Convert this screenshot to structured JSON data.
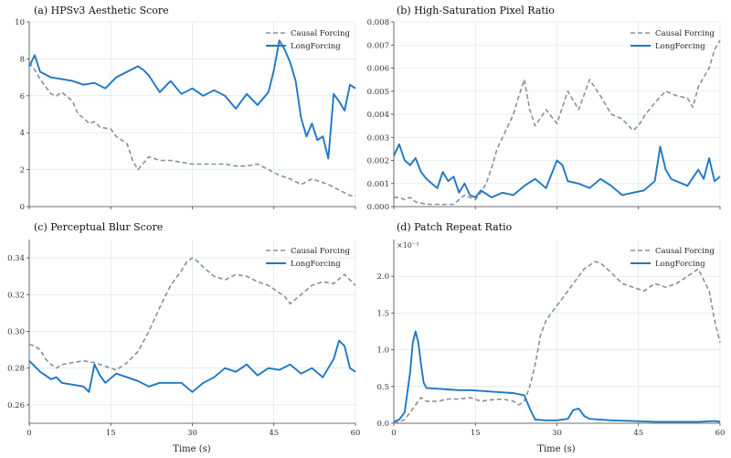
{
  "xlabel": "Time (s)",
  "colors": {
    "causal": "#8a9096",
    "long": "#1f77c4",
    "grid": "#cfe3e6"
  },
  "legend": {
    "causal": "Causal Forcing",
    "long": "LongForcing"
  },
  "chart_data": [
    {
      "id": "a",
      "type": "line",
      "title": "(a) HPSv3 Aesthetic Score",
      "xlim": [
        0,
        60
      ],
      "ylim": [
        0,
        10
      ],
      "xticks": [
        0,
        15,
        30,
        45,
        60
      ],
      "yticks": [
        0,
        2,
        4,
        6,
        8,
        10
      ],
      "ytick_labels": [
        "0",
        "2",
        "4",
        "6",
        "8",
        "10"
      ],
      "xtick_labels": [],
      "series": [
        {
          "name": "Causal Forcing",
          "style": "dashed",
          "x": [
            0,
            1,
            2,
            3,
            4,
            5,
            6,
            8,
            9,
            10,
            11,
            12,
            13,
            15,
            16,
            18,
            19,
            20,
            22,
            24,
            26,
            28,
            30,
            33,
            36,
            38,
            40,
            42,
            44,
            46,
            48,
            50,
            52,
            54,
            55,
            57,
            59,
            60
          ],
          "y": [
            7.8,
            7.4,
            6.9,
            6.5,
            6.1,
            6.0,
            6.2,
            5.7,
            5.0,
            4.8,
            4.5,
            4.6,
            4.3,
            4.2,
            3.8,
            3.4,
            2.5,
            2.0,
            2.7,
            2.5,
            2.5,
            2.4,
            2.3,
            2.3,
            2.3,
            2.2,
            2.2,
            2.3,
            2.0,
            1.7,
            1.5,
            1.2,
            1.5,
            1.3,
            1.2,
            0.9,
            0.6,
            0.6
          ]
        },
        {
          "name": "LongForcing",
          "style": "solid",
          "x": [
            0,
            1,
            2,
            4,
            6,
            8,
            10,
            12,
            14,
            16,
            18,
            20,
            21,
            22,
            24,
            26,
            28,
            30,
            32,
            34,
            36,
            38,
            40,
            42,
            44,
            45,
            46,
            47,
            48,
            49,
            50,
            51,
            52,
            53,
            54,
            55,
            56,
            57,
            58,
            59,
            60
          ],
          "y": [
            7.6,
            8.2,
            7.3,
            7.0,
            6.9,
            6.8,
            6.6,
            6.7,
            6.4,
            7.0,
            7.3,
            7.6,
            7.4,
            7.1,
            6.2,
            6.8,
            6.1,
            6.4,
            6.0,
            6.3,
            6.0,
            5.3,
            6.1,
            5.5,
            6.2,
            7.4,
            9.0,
            8.5,
            7.8,
            6.8,
            4.8,
            3.8,
            4.5,
            3.6,
            3.8,
            2.6,
            6.1,
            5.7,
            5.2,
            6.6,
            6.4
          ]
        }
      ]
    },
    {
      "id": "b",
      "type": "line",
      "title": "(b) High-Saturation Pixel Ratio",
      "xlim": [
        0,
        60
      ],
      "ylim": [
        0,
        0.008
      ],
      "xticks": [
        0,
        15,
        30,
        45,
        60
      ],
      "yticks": [
        0,
        0.001,
        0.002,
        0.003,
        0.004,
        0.005,
        0.006,
        0.007,
        0.008
      ],
      "ytick_labels": [
        "0.000",
        "0.001",
        "0.002",
        "0.003",
        "0.004",
        "0.005",
        "0.006",
        "0.007",
        "0.008"
      ],
      "xtick_labels": [],
      "series": [
        {
          "name": "Causal Forcing",
          "style": "dashed",
          "x": [
            0,
            1,
            2,
            3,
            4,
            6,
            8,
            10,
            11,
            12,
            13,
            14,
            15,
            16,
            17,
            18,
            19,
            20,
            21,
            22,
            23,
            24,
            25,
            26,
            28,
            30,
            32,
            34,
            36,
            38,
            40,
            42,
            44,
            45,
            46,
            48,
            50,
            52,
            54,
            55,
            56,
            58,
            59,
            60
          ],
          "y": [
            0.0004,
            0.0004,
            0.0003,
            0.0004,
            0.0002,
            0.0001,
            0.0001,
            0.0001,
            0.0001,
            0.0003,
            0.0005,
            0.0004,
            0.0003,
            0.0006,
            0.001,
            0.0017,
            0.0025,
            0.003,
            0.0035,
            0.004,
            0.0048,
            0.0055,
            0.0042,
            0.0035,
            0.0042,
            0.0036,
            0.005,
            0.0042,
            0.0055,
            0.0048,
            0.004,
            0.0038,
            0.0033,
            0.0035,
            0.0039,
            0.0045,
            0.005,
            0.0048,
            0.0047,
            0.0043,
            0.0052,
            0.006,
            0.0068,
            0.0072
          ]
        },
        {
          "name": "LongForcing",
          "style": "solid",
          "x": [
            0,
            1,
            2,
            3,
            4,
            5,
            6,
            7,
            8,
            9,
            10,
            11,
            12,
            13,
            14,
            15,
            16,
            18,
            20,
            22,
            24,
            26,
            28,
            30,
            31,
            32,
            34,
            36,
            38,
            40,
            42,
            44,
            46,
            48,
            49,
            50,
            51,
            52,
            54,
            56,
            57,
            58,
            59,
            60
          ],
          "y": [
            0.0022,
            0.0027,
            0.002,
            0.0018,
            0.0021,
            0.0015,
            0.0012,
            0.001,
            0.0008,
            0.0015,
            0.0011,
            0.0013,
            0.0006,
            0.001,
            0.0005,
            0.0004,
            0.0007,
            0.0004,
            0.0006,
            0.0005,
            0.0009,
            0.0012,
            0.0008,
            0.002,
            0.0018,
            0.0011,
            0.001,
            0.0008,
            0.0012,
            0.0009,
            0.0005,
            0.0006,
            0.0007,
            0.0011,
            0.0026,
            0.0016,
            0.0012,
            0.0011,
            0.0009,
            0.0016,
            0.0012,
            0.0021,
            0.0011,
            0.0013
          ]
        }
      ]
    },
    {
      "id": "c",
      "type": "line",
      "title": "(c) Perceptual Blur Score",
      "xlim": [
        0,
        60
      ],
      "ylim": [
        0.25,
        0.35
      ],
      "xticks": [
        0,
        15,
        30,
        45,
        60
      ],
      "yticks": [
        0.26,
        0.28,
        0.3,
        0.32,
        0.34
      ],
      "ytick_labels": [
        "0.26",
        "0.28",
        "0.30",
        "0.32",
        "0.34"
      ],
      "xtick_labels": [
        "0",
        "15",
        "30",
        "45",
        "60"
      ],
      "series": [
        {
          "name": "Causal Forcing",
          "style": "dashed",
          "x": [
            0,
            1,
            2,
            3,
            4,
            5,
            6,
            8,
            10,
            12,
            14,
            16,
            18,
            20,
            22,
            24,
            26,
            28,
            29,
            30,
            31,
            32,
            34,
            36,
            38,
            40,
            42,
            44,
            46,
            47,
            48,
            50,
            52,
            54,
            56,
            58,
            60
          ],
          "y": [
            0.293,
            0.292,
            0.29,
            0.285,
            0.282,
            0.28,
            0.282,
            0.283,
            0.284,
            0.283,
            0.281,
            0.279,
            0.283,
            0.289,
            0.3,
            0.313,
            0.325,
            0.333,
            0.338,
            0.34,
            0.338,
            0.335,
            0.33,
            0.328,
            0.331,
            0.33,
            0.327,
            0.325,
            0.321,
            0.319,
            0.315,
            0.32,
            0.325,
            0.327,
            0.326,
            0.331,
            0.325
          ]
        },
        {
          "name": "LongForcing",
          "style": "solid",
          "x": [
            0,
            1,
            2,
            3,
            4,
            5,
            6,
            8,
            10,
            11,
            12,
            13,
            14,
            16,
            18,
            20,
            22,
            24,
            26,
            28,
            30,
            32,
            34,
            36,
            38,
            40,
            42,
            44,
            46,
            48,
            50,
            52,
            54,
            56,
            57,
            58,
            59,
            60
          ],
          "y": [
            0.284,
            0.281,
            0.278,
            0.276,
            0.274,
            0.275,
            0.272,
            0.271,
            0.27,
            0.267,
            0.282,
            0.276,
            0.272,
            0.277,
            0.275,
            0.273,
            0.27,
            0.272,
            0.272,
            0.272,
            0.267,
            0.272,
            0.275,
            0.28,
            0.278,
            0.282,
            0.276,
            0.28,
            0.279,
            0.282,
            0.277,
            0.28,
            0.275,
            0.285,
            0.295,
            0.292,
            0.28,
            0.278
          ]
        }
      ]
    },
    {
      "id": "d",
      "type": "line",
      "title": "(d) Patch Repeat Ratio",
      "exponent": "×10⁻³",
      "xlim": [
        0,
        60
      ],
      "ylim": [
        0,
        2.5
      ],
      "xticks": [
        0,
        15,
        30,
        45,
        60
      ],
      "yticks": [
        0,
        0.5,
        1.0,
        1.5,
        2.0
      ],
      "ytick_labels": [
        "0.0",
        "0.5",
        "1.0",
        "1.5",
        "2.0"
      ],
      "xtick_labels": [
        "0",
        "15",
        "30",
        "45",
        "60"
      ],
      "series": [
        {
          "name": "Causal Forcing",
          "style": "dashed",
          "x": [
            0,
            1,
            2,
            3,
            4,
            5,
            6,
            8,
            10,
            12,
            14,
            16,
            18,
            20,
            22,
            23,
            24,
            25,
            26,
            27,
            28,
            29,
            30,
            31,
            32,
            33,
            34,
            35,
            36,
            37,
            38,
            40,
            42,
            44,
            46,
            48,
            50,
            52,
            54,
            56,
            57,
            58,
            59,
            60
          ],
          "y": [
            0.0,
            0.02,
            0.05,
            0.15,
            0.25,
            0.35,
            0.3,
            0.3,
            0.33,
            0.33,
            0.35,
            0.3,
            0.32,
            0.33,
            0.3,
            0.25,
            0.3,
            0.5,
            0.8,
            1.2,
            1.4,
            1.5,
            1.6,
            1.7,
            1.8,
            1.9,
            2.0,
            2.1,
            2.15,
            2.2,
            2.18,
            2.05,
            1.9,
            1.85,
            1.8,
            1.9,
            1.85,
            1.9,
            2.0,
            2.1,
            1.95,
            1.8,
            1.4,
            1.1
          ]
        },
        {
          "name": "LongForcing",
          "style": "solid",
          "x": [
            0,
            1,
            2,
            3,
            3.5,
            4,
            4.5,
            5,
            5.5,
            6,
            8,
            10,
            12,
            14,
            16,
            18,
            20,
            22,
            24,
            25,
            26,
            28,
            30,
            32,
            33,
            34,
            35,
            36,
            40,
            44,
            48,
            52,
            56,
            59,
            60
          ],
          "y": [
            0.02,
            0.05,
            0.15,
            0.7,
            1.1,
            1.25,
            1.1,
            0.8,
            0.55,
            0.48,
            0.47,
            0.46,
            0.45,
            0.45,
            0.44,
            0.43,
            0.42,
            0.41,
            0.38,
            0.2,
            0.05,
            0.04,
            0.04,
            0.06,
            0.18,
            0.2,
            0.1,
            0.06,
            0.04,
            0.03,
            0.02,
            0.02,
            0.02,
            0.03,
            0.02
          ]
        }
      ]
    }
  ]
}
